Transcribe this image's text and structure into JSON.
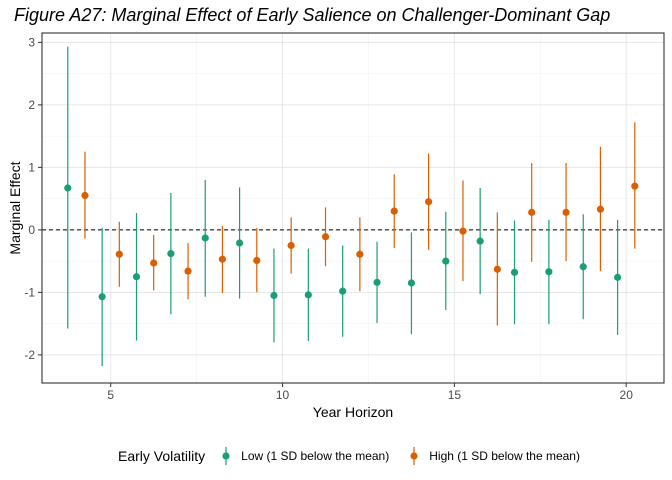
{
  "chart_data": {
    "type": "scatter",
    "subtype": "point-range",
    "title": "Figure A27: Marginal Effect of Early Salience on Challenger-Dominant Gap",
    "xlabel": "Year Horizon",
    "ylabel": "Marginal Effect",
    "xlim": [
      3.0,
      21.1
    ],
    "ylim": [
      -2.45,
      3.15
    ],
    "x_ticks": [
      5,
      10,
      15,
      20
    ],
    "y_ticks": [
      -2,
      -1,
      0,
      1,
      2,
      3
    ],
    "reference_line": {
      "y": 0,
      "style": "dashed"
    },
    "grid": true,
    "legend_position": "bottom",
    "legend_title": "Early Volatility",
    "dodge": 0.25,
    "x": [
      4,
      5,
      6,
      7,
      8,
      9,
      10,
      11,
      12,
      13,
      14,
      15,
      16,
      17,
      18,
      19,
      20
    ],
    "series": [
      {
        "name": "Low (1 SD below the mean)",
        "color": "#1b9e77",
        "estimate": [
          0.67,
          -1.07,
          -0.75,
          -0.38,
          -0.13,
          -0.21,
          -1.05,
          -1.04,
          -0.98,
          -0.84,
          -0.85,
          -0.5,
          -0.18,
          -0.68,
          -0.67,
          -0.59,
          -0.76
        ],
        "lower": [
          -1.58,
          -2.18,
          -1.77,
          -1.35,
          -1.07,
          -1.1,
          -1.8,
          -1.78,
          -1.71,
          -1.49,
          -1.67,
          -1.28,
          -1.03,
          -1.51,
          -1.51,
          -1.43,
          -1.68
        ],
        "upper": [
          2.93,
          0.03,
          0.27,
          0.59,
          0.8,
          0.68,
          -0.3,
          -0.3,
          -0.25,
          -0.19,
          -0.04,
          0.29,
          0.67,
          0.15,
          0.16,
          0.25,
          0.16
        ]
      },
      {
        "name": "High (1 SD below the mean)",
        "color": "#d95f02",
        "estimate": [
          0.55,
          -0.39,
          -0.53,
          -0.66,
          -0.47,
          -0.49,
          -0.25,
          -0.11,
          -0.39,
          0.3,
          0.45,
          -0.02,
          -0.63,
          0.28,
          0.28,
          0.33,
          0.7
        ],
        "lower": [
          -0.14,
          -0.91,
          -0.97,
          -1.11,
          -1.01,
          -1.0,
          -0.7,
          -0.58,
          -0.98,
          -0.29,
          -0.32,
          -0.82,
          -1.53,
          -0.51,
          -0.5,
          -0.66,
          -0.3
        ],
        "upper": [
          1.25,
          0.13,
          -0.08,
          -0.21,
          0.06,
          0.03,
          0.2,
          0.36,
          0.2,
          0.89,
          1.22,
          0.79,
          0.28,
          1.07,
          1.07,
          1.33,
          1.72
        ]
      }
    ]
  }
}
